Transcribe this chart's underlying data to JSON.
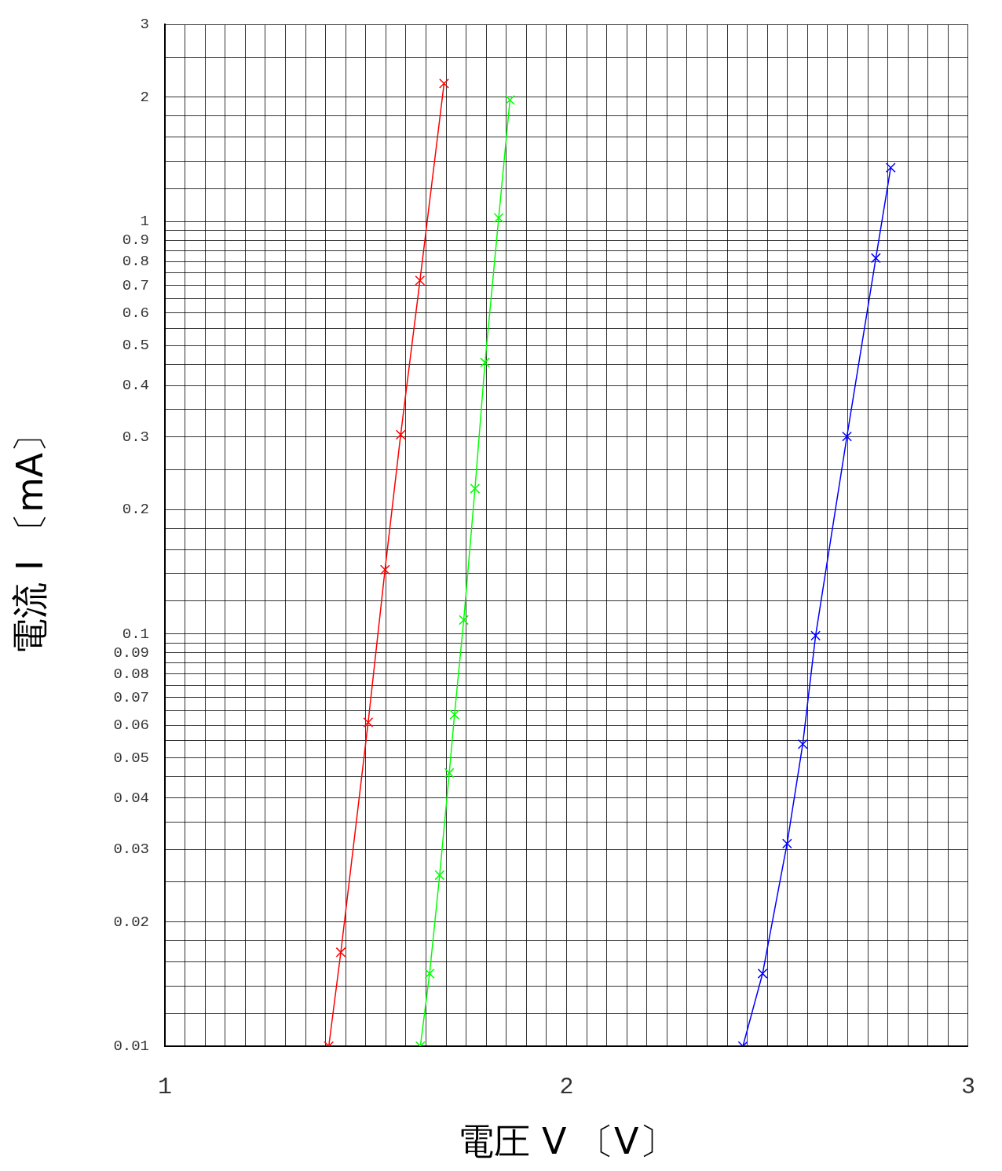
{
  "chart_data": {
    "type": "line",
    "xlabel": "電圧 V 〔V〕",
    "ylabel": "電流 I 〔mA〕",
    "log": "y",
    "grid": true,
    "legend": false,
    "marker": "cross",
    "line_style": "solid",
    "xlim": [
      1,
      3
    ],
    "ylim": [
      0.01,
      3
    ],
    "xticks": [
      1,
      {
        "value": 1.05,
        "label": null
      },
      {
        "value": 1.1,
        "label": null
      },
      {
        "value": 1.15,
        "label": null
      },
      {
        "value": 1.2,
        "label": null
      },
      {
        "value": 1.25,
        "label": null
      },
      {
        "value": 1.3,
        "label": null
      },
      {
        "value": 1.35,
        "label": null
      },
      {
        "value": 1.4,
        "label": null
      },
      {
        "value": 1.45,
        "label": null
      },
      {
        "value": 1.5,
        "label": null
      },
      {
        "value": 1.55,
        "label": null
      },
      {
        "value": 1.6,
        "label": null
      },
      {
        "value": 1.65,
        "label": null
      },
      {
        "value": 1.7,
        "label": null
      },
      {
        "value": 1.75,
        "label": null
      },
      {
        "value": 1.8,
        "label": null
      },
      {
        "value": 1.85,
        "label": null
      },
      {
        "value": 1.9,
        "label": null
      },
      {
        "value": 1.95,
        "label": null
      },
      2,
      {
        "value": 2.05,
        "label": null
      },
      {
        "value": 2.1,
        "label": null
      },
      {
        "value": 2.15,
        "label": null
      },
      {
        "value": 2.2,
        "label": null
      },
      {
        "value": 2.25,
        "label": null
      },
      {
        "value": 2.3,
        "label": null
      },
      {
        "value": 2.35,
        "label": null
      },
      {
        "value": 2.4,
        "label": null
      },
      {
        "value": 2.45,
        "label": null
      },
      {
        "value": 2.5,
        "label": null
      },
      {
        "value": 2.55,
        "label": null
      },
      {
        "value": 2.6,
        "label": null
      },
      {
        "value": 2.65,
        "label": null
      },
      {
        "value": 2.7,
        "label": null
      },
      {
        "value": 2.75,
        "label": null
      },
      {
        "value": 2.8,
        "label": null
      },
      {
        "value": 2.85,
        "label": null
      },
      {
        "value": 2.9,
        "label": null
      },
      {
        "value": 2.95,
        "label": null
      },
      3
    ],
    "yticks": [
      0.01,
      {
        "value": 0.012,
        "label": null
      },
      {
        "value": 0.014,
        "label": null
      },
      {
        "value": 0.016,
        "label": null
      },
      {
        "value": 0.018,
        "label": null
      },
      0.02,
      {
        "value": 0.025,
        "label": null
      },
      0.03,
      {
        "value": 0.035,
        "label": null
      },
      0.04,
      {
        "value": 0.045,
        "label": null
      },
      0.05,
      {
        "value": 0.055,
        "label": null
      },
      0.06,
      {
        "value": 0.065,
        "label": null
      },
      0.07,
      {
        "value": 0.075,
        "label": null
      },
      0.08,
      {
        "value": 0.085,
        "label": null
      },
      0.09,
      {
        "value": 0.095,
        "label": null
      },
      0.1,
      {
        "value": 0.12,
        "label": null
      },
      {
        "value": 0.14,
        "label": null
      },
      {
        "value": 0.16,
        "label": null
      },
      {
        "value": 0.18,
        "label": null
      },
      0.2,
      {
        "value": 0.25,
        "label": null
      },
      0.3,
      {
        "value": 0.35,
        "label": null
      },
      0.4,
      {
        "value": 0.45,
        "label": null
      },
      0.5,
      {
        "value": 0.55,
        "label": null
      },
      0.6,
      {
        "value": 0.65,
        "label": null
      },
      0.7,
      {
        "value": 0.75,
        "label": null
      },
      0.8,
      {
        "value": 0.85,
        "label": null
      },
      0.9,
      {
        "value": 0.95,
        "label": null
      },
      1,
      {
        "value": 1.2,
        "label": null
      },
      {
        "value": 1.4,
        "label": null
      },
      {
        "value": 1.6,
        "label": null
      },
      {
        "value": 1.8,
        "label": null
      },
      2,
      {
        "value": 2.5,
        "label": null
      },
      3
    ],
    "series": [
      {
        "color": "#ff0000",
        "x": [
          1.408,
          1.438,
          1.506,
          1.548,
          1.587,
          1.635,
          1.695
        ],
        "values": [
          0.01,
          0.0169,
          0.061,
          0.143,
          0.304,
          0.719,
          2.16
        ]
      },
      {
        "color": "#00ff00",
        "x": [
          1.636,
          1.659,
          1.684,
          1.708,
          1.721,
          1.744,
          1.772,
          1.797,
          1.831,
          1.859
        ],
        "values": [
          0.01,
          0.015,
          0.026,
          0.046,
          0.0637,
          0.108,
          0.225,
          0.455,
          1.02,
          1.97
        ]
      },
      {
        "color": "#0000ff",
        "x": [
          2.439,
          2.488,
          2.549,
          2.588,
          2.62,
          2.698,
          2.77,
          2.807
        ],
        "values": [
          0.01,
          0.015,
          0.031,
          0.054,
          0.099,
          0.301,
          0.815,
          1.35
        ]
      }
    ]
  }
}
